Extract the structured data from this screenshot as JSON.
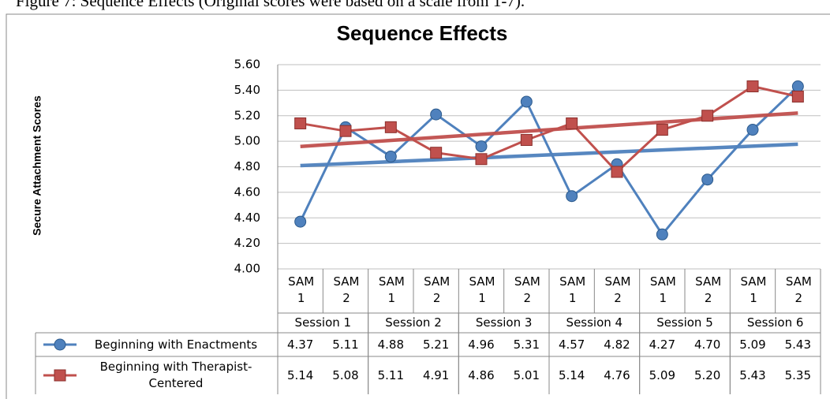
{
  "caption": "Figure 7: Sequence Effects (Original scores were based on a scale from 1-7).",
  "chart_data": {
    "type": "line",
    "title": "Sequence Effects",
    "y_label": "Secure Attachment Scores",
    "categories": [
      "SAM 1",
      "SAM 2",
      "SAM 1",
      "SAM 2",
      "SAM 1",
      "SAM 2",
      "SAM 1",
      "SAM 2",
      "SAM 1",
      "SAM 2",
      "SAM 1",
      "SAM 2"
    ],
    "sessions": [
      "Session 1",
      "Session 2",
      "Session 3",
      "Session 4",
      "Session 5",
      "Session 6"
    ],
    "series": [
      {
        "name": "Beginning with Enactments",
        "color": "#4f81bd",
        "marker": "circle",
        "values": [
          4.37,
          5.11,
          4.88,
          5.21,
          4.96,
          5.31,
          4.57,
          4.82,
          4.27,
          4.7,
          5.09,
          5.43
        ],
        "value_labels": [
          "4.37",
          "5.11",
          "4.88",
          "5.21",
          "4.96",
          "5.31",
          "4.57",
          "4.82",
          "4.27",
          "4.70",
          "5.09",
          "5.43"
        ]
      },
      {
        "name": "Beginning with Therapist-Centered",
        "color": "#c0504d",
        "marker": "square",
        "values": [
          5.14,
          5.08,
          5.11,
          4.91,
          4.86,
          5.01,
          5.14,
          4.76,
          5.09,
          5.2,
          5.43,
          5.35
        ],
        "value_labels": [
          "5.14",
          "5.08",
          "5.11",
          "4.91",
          "4.86",
          "5.01",
          "5.14",
          "4.76",
          "5.09",
          "5.20",
          "5.43",
          "5.35"
        ]
      }
    ],
    "ylim": [
      4,
      5.6
    ],
    "yticks": [
      {
        "value": 4,
        "label": "4.00"
      },
      {
        "value": 4.2,
        "label": "4.20"
      },
      {
        "value": 4.4,
        "label": "4.40"
      },
      {
        "value": 4.6,
        "label": "4.60"
      },
      {
        "value": 4.8,
        "label": "4.80"
      },
      {
        "value": 5,
        "label": "5.00"
      },
      {
        "value": 5.2,
        "label": "5.20"
      },
      {
        "value": 5.4,
        "label": "5.40"
      },
      {
        "value": 5.6,
        "label": "5.60"
      }
    ],
    "grid": true,
    "trendline": true,
    "data_table": true
  }
}
